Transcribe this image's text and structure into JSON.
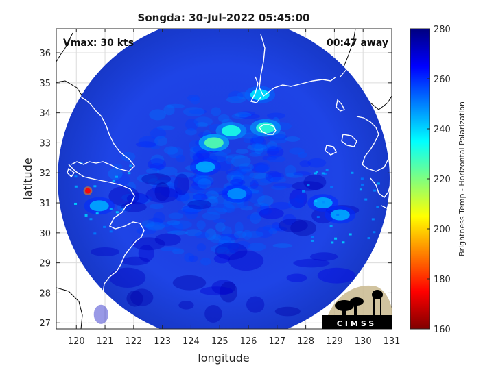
{
  "chart_data": {
    "type": "heatmap",
    "title": "Songda: 30-Jul-2022 05:45:00",
    "xlabel": "longitude",
    "ylabel": "latitude",
    "xlim": [
      119.3,
      131.0
    ],
    "ylim": [
      26.8,
      36.8
    ],
    "xticks": [
      120,
      121,
      122,
      123,
      124,
      125,
      126,
      127,
      128,
      129,
      130,
      131
    ],
    "yticks": [
      27,
      28,
      29,
      30,
      31,
      32,
      33,
      34,
      35,
      36
    ],
    "grid": true,
    "annotations": {
      "top_left": "Vmax: 30 kts",
      "top_right": "00:47 away"
    },
    "colorbar": {
      "label": "Brightness Temp - Horizontal Polarization",
      "min": 160,
      "max": 280,
      "ticks": [
        160,
        180,
        200,
        220,
        240,
        260,
        280
      ],
      "colormap": "jet"
    },
    "swath": {
      "center": [
        125.1,
        31.1
      ],
      "radius_lon": 5.7,
      "radius_lat": 5.2
    },
    "cold_features": [
      {
        "lon": 124.8,
        "lat": 33.0,
        "value": 225
      },
      {
        "lon": 125.4,
        "lat": 33.4,
        "value": 232
      },
      {
        "lon": 126.6,
        "lat": 33.5,
        "value": 230
      },
      {
        "lon": 124.5,
        "lat": 32.2,
        "value": 245
      },
      {
        "lon": 125.6,
        "lat": 31.3,
        "value": 248
      },
      {
        "lon": 120.4,
        "lat": 31.4,
        "value": 175
      },
      {
        "lon": 120.8,
        "lat": 30.9,
        "value": 245
      },
      {
        "lon": 126.4,
        "lat": 34.6,
        "value": 238
      },
      {
        "lon": 128.6,
        "lat": 31.0,
        "value": 245
      },
      {
        "lon": 129.2,
        "lat": 30.6,
        "value": 245
      }
    ],
    "logo": "CIMSS"
  },
  "colors": {
    "background": "#1f3fd9",
    "coast": "#ffffff",
    "land": "#000000"
  }
}
